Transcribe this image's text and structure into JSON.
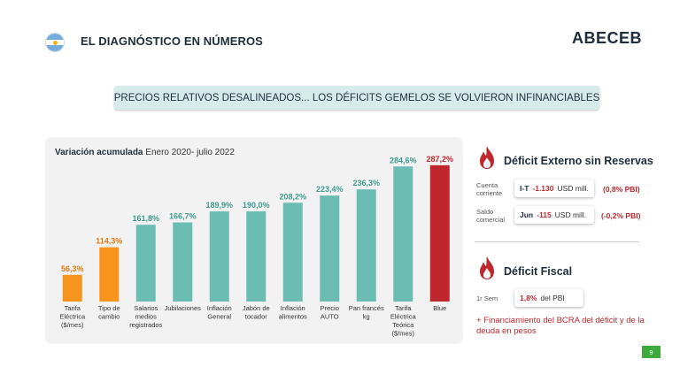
{
  "header": {
    "title": "EL DIAGNÓSTICO EN NÚMEROS",
    "brand": "ABECEB",
    "flag_colors": {
      "band": "#74acdf",
      "center": "#ffffff",
      "sun": "#f6b40e"
    }
  },
  "banner": {
    "text": "PRECIOS RELATIVOS  DESALINEADOS... LOS DÉFICITS GEMELOS SE VOLVIERON INFINANCIABLES"
  },
  "chart_panel": {
    "title_bold": "Variación acumulada",
    "title_rest": " Enero 2020- julio 2022"
  },
  "chart_data": {
    "type": "bar",
    "title": "Variación acumulada Enero 2020- julio 2022",
    "xlabel": "",
    "ylabel": "",
    "ylim": [
      0,
      300
    ],
    "grid": false,
    "unit": "%",
    "categories": [
      [
        "Tarifa",
        "Eléctrica",
        "($/mes)"
      ],
      [
        "Tipo de",
        "cambio"
      ],
      [
        "Salarios",
        "medios",
        "registrados"
      ],
      [
        "Jubilaciones"
      ],
      [
        "Inflación",
        "General"
      ],
      [
        "Jabón de",
        "tocador"
      ],
      [
        "Inflación",
        "alimentos"
      ],
      [
        "Precio",
        "AUTO"
      ],
      [
        "Pan francés",
        "kg"
      ],
      [
        "Tarifa",
        "Eléctrica",
        "Teórica",
        "($/mes)"
      ],
      [
        "Blue"
      ]
    ],
    "values": [
      56.3,
      114.3,
      161.8,
      166.7,
      189.9,
      190.0,
      208.2,
      223.4,
      236.3,
      284.6,
      287.2
    ],
    "labels": [
      "56,3%",
      "114,3%",
      "161,8%",
      "166,7%",
      "189,9%",
      "190,0%",
      "208,2%",
      "223,4%",
      "236,3%",
      "284,6%",
      "287,2%"
    ],
    "colors": [
      "#f7941d",
      "#f7941d",
      "#6bbcb2",
      "#6bbcb2",
      "#6bbcb2",
      "#6bbcb2",
      "#6bbcb2",
      "#6bbcb2",
      "#6bbcb2",
      "#6bbcb2",
      "#c0272d"
    ],
    "label_colors": [
      "#e07b10",
      "#e07b10",
      "#3f9b8f",
      "#3f9b8f",
      "#3f9b8f",
      "#3f9b8f",
      "#3f9b8f",
      "#3f9b8f",
      "#3f9b8f",
      "#3f9b8f",
      "#c0272d"
    ]
  },
  "external_deficit": {
    "title": "Déficit Externo sin Reservas",
    "icon": "flame-icon",
    "rows": [
      {
        "label_line1": "Cuenta",
        "label_line2": "corriente",
        "period": "I-T",
        "value": "-1.130",
        "unit": "USD mill.",
        "pbi": "(0,8% PBI)"
      },
      {
        "label_line1": "Saldo",
        "label_line2": "comercial",
        "period": "Jun",
        "value": "-115",
        "unit": "USD mill.",
        "pbi": "(-0,2% PBI)"
      }
    ]
  },
  "fiscal_deficit": {
    "title": "Déficit Fiscal",
    "icon": "flame-icon",
    "row": {
      "label": "1r Sem",
      "value": "1,8%",
      "unit": "del PBI"
    },
    "note": "+  Financiamiento del BCRA del déficit y de la deuda en pesos"
  },
  "page_number": "9",
  "accent_colors": {
    "red": "#c0272d",
    "teal": "#6bbcb2",
    "orange": "#f7941d",
    "green": "#3cab3c"
  }
}
